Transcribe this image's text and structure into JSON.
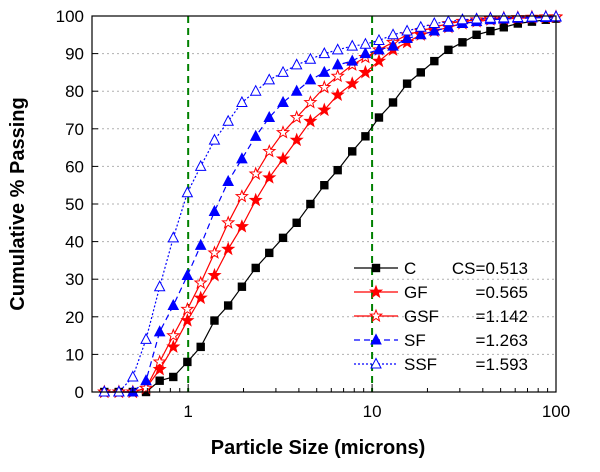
{
  "chart_data": {
    "type": "line",
    "title": "",
    "xlabel": "Particle Size (microns)",
    "ylabel": "Cumulative % Passing",
    "x_scale": "log",
    "xlim": [
      0.3,
      100
    ],
    "ylim": [
      0,
      100
    ],
    "x_ticks": [
      1,
      10,
      100
    ],
    "x_tick_labels": [
      "1",
      "10",
      "100"
    ],
    "y_ticks": [
      0,
      10,
      20,
      30,
      40,
      50,
      60,
      70,
      80,
      90,
      100
    ],
    "y_tick_labels": [
      "0",
      "10",
      "20",
      "30",
      "40",
      "50",
      "60",
      "70",
      "80",
      "90",
      "100"
    ],
    "grid": "horizontal dotted",
    "reference_lines": [
      {
        "x": 1,
        "color": "#008000",
        "style": "dashed"
      },
      {
        "x": 10,
        "color": "#008000",
        "style": "dashed"
      }
    ],
    "legend_position": "bottom-right",
    "series": [
      {
        "name": "C",
        "value_label": "CS=0.513",
        "color": "#000000",
        "marker": "square-filled",
        "line": "solid",
        "x": [
          0.35,
          0.42,
          0.5,
          0.59,
          0.7,
          0.83,
          0.99,
          1.17,
          1.39,
          1.65,
          1.96,
          2.33,
          2.76,
          3.28,
          3.89,
          4.62,
          5.5,
          6.5,
          7.8,
          9.2,
          10.9,
          13,
          15.5,
          18.4,
          21.8,
          26,
          31,
          37,
          44,
          52,
          62,
          74,
          88,
          100
        ],
        "y": [
          0,
          0,
          0,
          0,
          3,
          4,
          8,
          12,
          19,
          23,
          28,
          33,
          37,
          41,
          45,
          50,
          55,
          59,
          64,
          68,
          73,
          77,
          82,
          85,
          88,
          91,
          93,
          95,
          96,
          97,
          98,
          98.5,
          99,
          99.3
        ]
      },
      {
        "name": "GF",
        "value_label": "=0.565",
        "color": "#ff0000",
        "marker": "star-filled",
        "line": "solid",
        "x": [
          0.35,
          0.42,
          0.5,
          0.59,
          0.7,
          0.83,
          0.99,
          1.17,
          1.39,
          1.65,
          1.96,
          2.33,
          2.76,
          3.28,
          3.89,
          4.62,
          5.5,
          6.5,
          7.8,
          9.2,
          10.9,
          13,
          15.5,
          18.4,
          21.8,
          26,
          31,
          37,
          44,
          52,
          62,
          74,
          88,
          100
        ],
        "y": [
          0,
          0,
          0,
          1,
          6,
          12,
          19,
          25,
          31,
          38,
          44,
          51,
          57,
          62,
          67,
          72,
          75,
          79,
          82,
          85,
          88,
          91,
          93,
          95,
          96,
          97,
          98,
          98.5,
          99,
          99.2,
          99.4,
          99.5,
          99.6,
          99.7
        ]
      },
      {
        "name": "GSF",
        "value_label": "=1.142",
        "color": "#ff0000",
        "marker": "star-open",
        "line": "solid",
        "x": [
          0.35,
          0.42,
          0.5,
          0.59,
          0.7,
          0.83,
          0.99,
          1.17,
          1.39,
          1.65,
          1.96,
          2.33,
          2.76,
          3.28,
          3.89,
          4.62,
          5.5,
          6.5,
          7.8,
          9.2,
          10.9,
          13,
          15.5,
          18.4,
          21.8,
          26,
          31,
          37,
          44,
          52,
          62,
          74,
          88,
          100
        ],
        "y": [
          0,
          0,
          0,
          1,
          8,
          15,
          22,
          29,
          37,
          45,
          52,
          58,
          64,
          69,
          73,
          77,
          81,
          84,
          87,
          89,
          91,
          93,
          95,
          96,
          97,
          98,
          98.6,
          99,
          99.3,
          99.5,
          99.6,
          99.7,
          99.8,
          99.8
        ]
      },
      {
        "name": "SF",
        "value_label": "=1.263",
        "color": "#0000ff",
        "marker": "triangle-filled",
        "line": "dashed",
        "x": [
          0.35,
          0.42,
          0.5,
          0.59,
          0.7,
          0.83,
          0.99,
          1.17,
          1.39,
          1.65,
          1.96,
          2.33,
          2.76,
          3.28,
          3.89,
          4.62,
          5.5,
          6.5,
          7.8,
          9.2,
          10.9,
          13,
          15.5,
          18.4,
          21.8,
          26,
          31,
          37,
          44,
          52,
          62,
          74,
          88,
          100
        ],
        "y": [
          0,
          0,
          0,
          3,
          16,
          23,
          31,
          39,
          48,
          56,
          62,
          68,
          73,
          77,
          80,
          83,
          85,
          87,
          88,
          90,
          91,
          92,
          94,
          95,
          96,
          97,
          98,
          98.5,
          99,
          99.2,
          99.4,
          99.5,
          99.6,
          99.7
        ]
      },
      {
        "name": "SSF",
        "value_label": "=1.593",
        "color": "#0000ff",
        "marker": "triangle-open",
        "line": "dotted",
        "x": [
          0.35,
          0.42,
          0.5,
          0.59,
          0.7,
          0.83,
          0.99,
          1.17,
          1.39,
          1.65,
          1.96,
          2.33,
          2.76,
          3.28,
          3.89,
          4.62,
          5.5,
          6.5,
          7.8,
          9.2,
          10.9,
          13,
          15.5,
          18.4,
          21.8,
          26,
          31,
          37,
          44,
          52,
          62,
          74,
          88,
          100
        ],
        "y": [
          0,
          0,
          4,
          14,
          28,
          41,
          53,
          60,
          67,
          72,
          77,
          80,
          83,
          85,
          87,
          88.5,
          90,
          91,
          92,
          92.5,
          93.5,
          95,
          96,
          97,
          98,
          98.5,
          99,
          99.2,
          99.4,
          99.5,
          99.6,
          99.7,
          99.8,
          99.8
        ]
      }
    ]
  }
}
